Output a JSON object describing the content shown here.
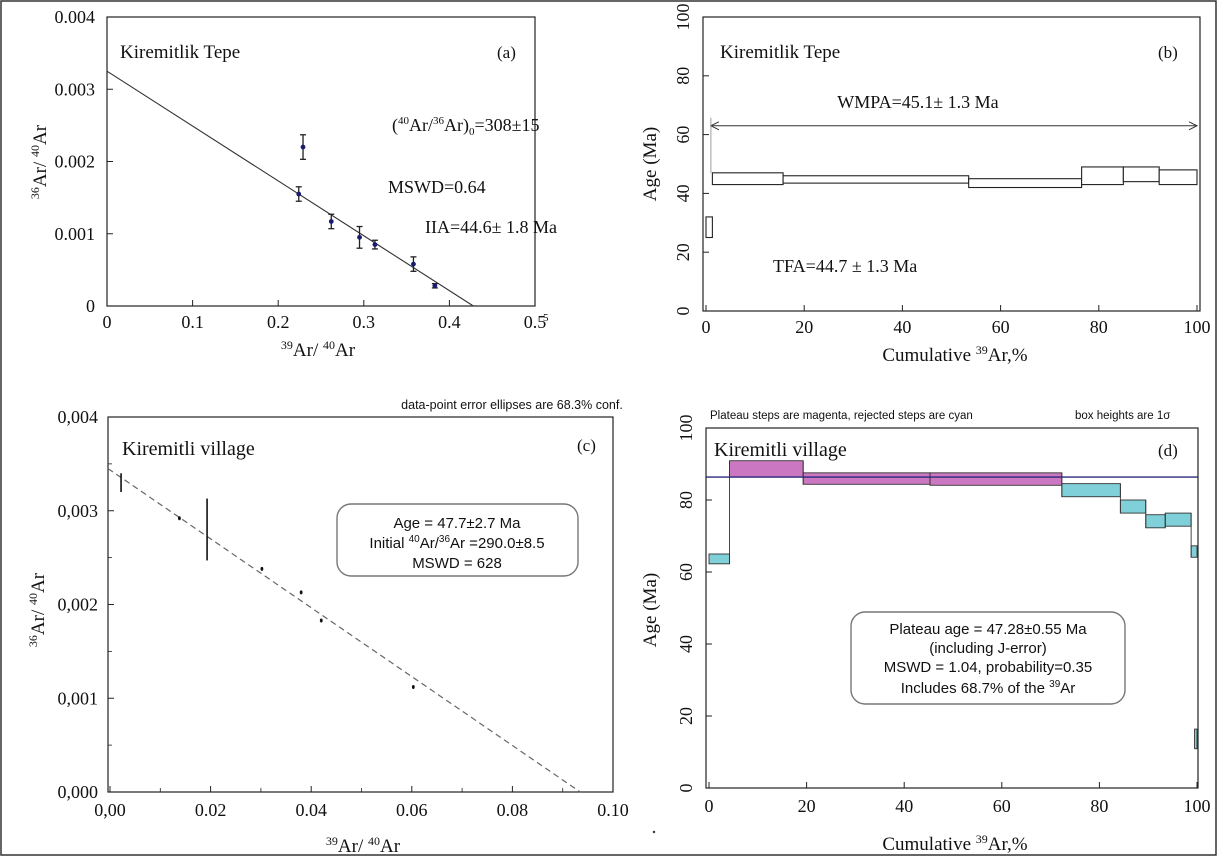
{
  "chart_data": [
    {
      "panel": "(a)",
      "type": "scatter",
      "title": "Kiremitlik Tepe",
      "xlabel": "39Ar/ 40Ar",
      "ylabel": "36Ar/ 40Ar",
      "xlim": [
        0,
        0.5
      ],
      "ylim": [
        0,
        0.004
      ],
      "x_ticks": [
        "0",
        "0.1",
        "0.2",
        "0.3",
        "0.4",
        "0.5"
      ],
      "y_ticks": [
        "0",
        "0.001",
        "0.002",
        "0.003",
        "0.004"
      ],
      "x_last_tick_suffix": "5",
      "points": [
        {
          "x": 0.224,
          "y": 0.00155,
          "err": 0.0001
        },
        {
          "x": 0.229,
          "y": 0.0022,
          "err": 0.00017
        },
        {
          "x": 0.262,
          "y": 0.00117,
          "err": 0.0001
        },
        {
          "x": 0.295,
          "y": 0.00095,
          "err": 0.00015
        },
        {
          "x": 0.313,
          "y": 0.00085,
          "err": 6e-05
        },
        {
          "x": 0.358,
          "y": 0.00058,
          "err": 0.0001
        },
        {
          "x": 0.383,
          "y": 0.00028,
          "err": 3e-05
        }
      ],
      "fit_line": {
        "intercept": 0.00325,
        "x_intercept": 0.428
      },
      "annotations": {
        "initial_ratio": "=308±15",
        "mswd": "MSWD=0.64",
        "iia": "IIA=44.6± 1.8 Ma"
      }
    },
    {
      "panel": "(b)",
      "type": "step",
      "title": "Kiremitlik Tepe",
      "xlabel": "Cumulative 39Ar,%",
      "ylabel": "Age (Ma)",
      "xlim": [
        0,
        100
      ],
      "ylim": [
        0,
        100
      ],
      "x_ticks": [
        "0",
        "20",
        "40",
        "60",
        "80",
        "100"
      ],
      "y_ticks": [
        "0",
        "20",
        "40",
        "60",
        "80",
        "100"
      ],
      "steps": [
        {
          "x0": 0,
          "x1": 1.3,
          "low": 25,
          "high": 32
        },
        {
          "x0": 1.3,
          "x1": 15.7,
          "low": 43,
          "high": 47
        },
        {
          "x0": 15.7,
          "x1": 53.5,
          "low": 43.5,
          "high": 46
        },
        {
          "x0": 53.5,
          "x1": 76.5,
          "low": 42,
          "high": 45
        },
        {
          "x0": 76.5,
          "x1": 85,
          "low": 43,
          "high": 49
        },
        {
          "x0": 85,
          "x1": 92.3,
          "low": 44,
          "high": 49
        },
        {
          "x0": 92.3,
          "x1": 100,
          "low": 43,
          "high": 48
        }
      ],
      "plateau_arrow": {
        "x0": 1,
        "x1": 100,
        "y": 63
      },
      "annotations": {
        "wmpa": "WMPA=45.1± 1.3 Ma",
        "tfa": "TFA=44.7 ± 1.3 Ma"
      }
    },
    {
      "panel": "(c)",
      "type": "scatter",
      "title": "Kiremitli village",
      "subtitle": "data-point error ellipses are 68.3% conf.",
      "xlabel": "39Ar/ 40Ar",
      "ylabel": "36Ar/ 40Ar",
      "xlim": [
        0,
        0.1
      ],
      "ylim": [
        0,
        0.004
      ],
      "x_ticks": [
        "0,00",
        "0.02",
        "0.04",
        "0.06",
        "0.08",
        "0.10"
      ],
      "y_ticks": [
        "0,000",
        "0,001",
        "0,002",
        "0,003",
        "0,004"
      ],
      "points": [
        {
          "x": 0.0022,
          "y": 0.0033,
          "err": 0.0001
        },
        {
          "x": 0.0138,
          "y": 0.00292,
          "err": 2e-05
        },
        {
          "x": 0.0193,
          "y": 0.0028,
          "err": 0.00033
        },
        {
          "x": 0.0302,
          "y": 0.00238,
          "err": 2e-05
        },
        {
          "x": 0.038,
          "y": 0.00213,
          "err": 2e-05
        },
        {
          "x": 0.042,
          "y": 0.00183,
          "err": 2e-05
        },
        {
          "x": 0.0603,
          "y": 0.00112,
          "err": 2e-05
        }
      ],
      "fit_line": {
        "intercept": 0.00345,
        "x_intercept": 0.0935
      },
      "info_box": {
        "age": "Age = 47.7±2.7 Ma",
        "initial": "Initial 40Ar/36Ar =290.0±8.5",
        "mswd": "MSWD = 628"
      }
    },
    {
      "panel": "(d)",
      "type": "step",
      "title": "Kiremitli village",
      "header_left": "Plateau steps are magenta, rejected steps are cyan",
      "header_right": "box heights are 1σ",
      "xlabel": "Cumulative 39Ar,%",
      "ylabel": "Age (Ma)",
      "xlim": [
        0,
        100
      ],
      "ylim": [
        0,
        110
      ],
      "x_ticks": [
        "0",
        "20",
        "40",
        "60",
        "80",
        "100"
      ],
      "y_ticks": [
        "0",
        "20",
        "40",
        "60",
        "80",
        "100"
      ],
      "plateau_line": 95,
      "steps": [
        {
          "x0": 0,
          "x1": 4.2,
          "low": 68.5,
          "high": 71.5,
          "status": "rejected"
        },
        {
          "x0": 4.2,
          "x1": 19.3,
          "low": 95,
          "high": 100,
          "status": "plateau"
        },
        {
          "x0": 19.3,
          "x1": 45.3,
          "low": 92.8,
          "high": 96.3,
          "status": "plateau"
        },
        {
          "x0": 45.3,
          "x1": 72.3,
          "low": 92.5,
          "high": 96.3,
          "status": "plateau"
        },
        {
          "x0": 72.3,
          "x1": 84.3,
          "low": 89,
          "high": 93,
          "status": "rejected"
        },
        {
          "x0": 84.3,
          "x1": 89.5,
          "low": 84,
          "high": 88,
          "status": "rejected"
        },
        {
          "x0": 89.5,
          "x1": 93.5,
          "low": 79.5,
          "high": 83.5,
          "status": "rejected"
        },
        {
          "x0": 93.5,
          "x1": 98.8,
          "low": 80,
          "high": 84,
          "status": "rejected"
        },
        {
          "x0": 98.8,
          "x1": 100,
          "low": 70.5,
          "high": 74,
          "status": "rejected"
        },
        {
          "x0": 99.5,
          "x1": 100,
          "low": 12,
          "high": 18,
          "status": "rejected"
        }
      ],
      "info_box": {
        "line1": "Plateau age = 47.28±0.55 Ma",
        "line2": "(including J-error)",
        "line3": "MSWD = 1.04, probability=0.35",
        "line4": "Includes 68.7% of the 39Ar"
      }
    }
  ],
  "colors": {
    "plateau": "#cc77c2",
    "rejected": "#7fd0d8",
    "plateau_line": "#2a2a7a",
    "points_a": "#1a1a70"
  }
}
